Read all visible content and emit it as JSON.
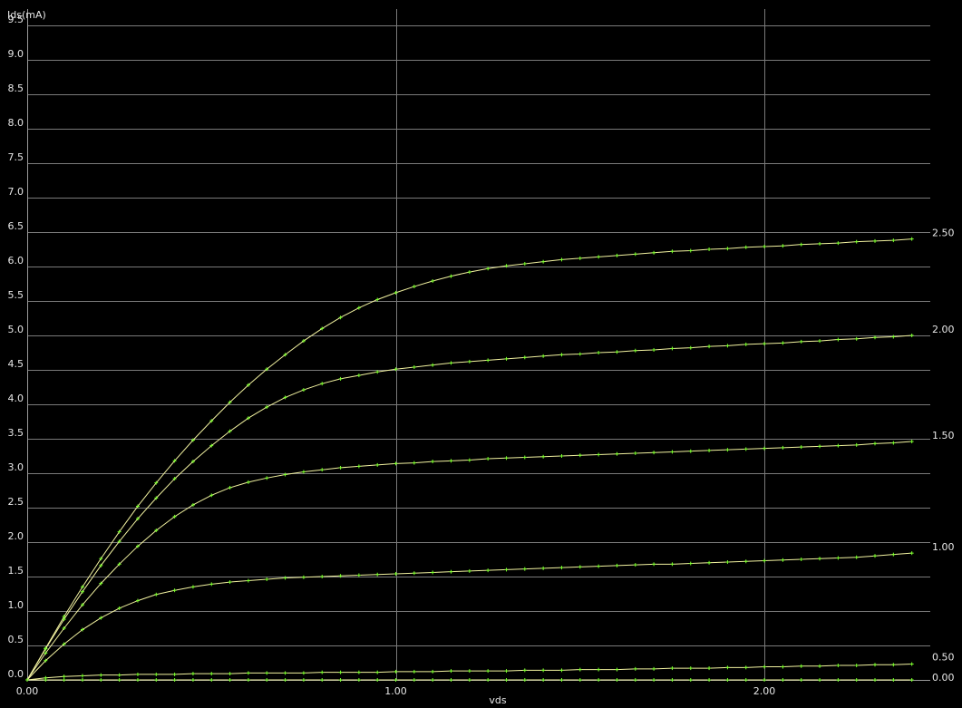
{
  "chart_data": {
    "type": "line",
    "title": "",
    "xlabel": "vds",
    "ylabel": "Ids(mA)",
    "xlim": [
      0,
      2.45
    ],
    "ylim": [
      0,
      9.5
    ],
    "x_ticks": [
      "0.00",
      "1.00",
      "2.00"
    ],
    "y_ticks": [
      "0.0",
      "0.5",
      "1.0",
      "1.5",
      "2.0",
      "2.5",
      "3.0",
      "3.5",
      "4.0",
      "4.5",
      "5.0",
      "5.5",
      "6.0",
      "6.5",
      "7.0",
      "7.5",
      "8.0",
      "8.5",
      "9.0",
      "9.5"
    ],
    "grid": true,
    "colors": {
      "background": "#000000",
      "grid": "#7a7a7a",
      "curve": "#f2f2a0",
      "marker": "#7cff2e",
      "text": "#e6e6e6"
    },
    "x": [
      0.0,
      0.05,
      0.1,
      0.15,
      0.2,
      0.25,
      0.3,
      0.35,
      0.4,
      0.45,
      0.5,
      0.55,
      0.6,
      0.65,
      0.7,
      0.75,
      0.8,
      0.85,
      0.9,
      0.95,
      1.0,
      1.05,
      1.1,
      1.15,
      1.2,
      1.25,
      1.3,
      1.35,
      1.4,
      1.45,
      1.5,
      1.55,
      1.6,
      1.65,
      1.7,
      1.75,
      1.8,
      1.85,
      1.9,
      1.95,
      2.0,
      2.05,
      2.1,
      2.15,
      2.2,
      2.25,
      2.3,
      2.35,
      2.4
    ],
    "series": [
      {
        "name": "2.50",
        "values": [
          0.0,
          0.46,
          0.92,
          1.35,
          1.76,
          2.15,
          2.52,
          2.86,
          3.18,
          3.48,
          3.76,
          4.03,
          4.28,
          4.51,
          4.72,
          4.92,
          5.1,
          5.26,
          5.4,
          5.52,
          5.62,
          5.71,
          5.79,
          5.86,
          5.92,
          5.97,
          6.01,
          6.04,
          6.07,
          6.1,
          6.12,
          6.14,
          6.16,
          6.18,
          6.2,
          6.22,
          6.23,
          6.25,
          6.26,
          6.28,
          6.29,
          6.3,
          6.32,
          6.33,
          6.34,
          6.36,
          6.37,
          6.38,
          6.4
        ]
      },
      {
        "name": "2.00",
        "values": [
          0.0,
          0.45,
          0.88,
          1.28,
          1.66,
          2.01,
          2.34,
          2.64,
          2.92,
          3.17,
          3.4,
          3.61,
          3.8,
          3.96,
          4.1,
          4.21,
          4.3,
          4.37,
          4.42,
          4.47,
          4.51,
          4.54,
          4.57,
          4.6,
          4.62,
          4.64,
          4.66,
          4.68,
          4.7,
          4.72,
          4.73,
          4.75,
          4.76,
          4.78,
          4.79,
          4.81,
          4.82,
          4.84,
          4.85,
          4.87,
          4.88,
          4.89,
          4.91,
          4.92,
          4.94,
          4.95,
          4.97,
          4.98,
          5.0
        ]
      },
      {
        "name": "1.50",
        "values": [
          0.0,
          0.39,
          0.75,
          1.09,
          1.4,
          1.68,
          1.94,
          2.17,
          2.37,
          2.54,
          2.68,
          2.79,
          2.87,
          2.93,
          2.98,
          3.02,
          3.05,
          3.08,
          3.1,
          3.12,
          3.14,
          3.15,
          3.17,
          3.18,
          3.19,
          3.21,
          3.22,
          3.23,
          3.24,
          3.25,
          3.26,
          3.27,
          3.28,
          3.29,
          3.3,
          3.31,
          3.32,
          3.33,
          3.34,
          3.35,
          3.36,
          3.37,
          3.38,
          3.39,
          3.4,
          3.41,
          3.43,
          3.44,
          3.46
        ]
      },
      {
        "name": "1.00",
        "values": [
          0.0,
          0.28,
          0.52,
          0.73,
          0.9,
          1.04,
          1.15,
          1.24,
          1.3,
          1.35,
          1.39,
          1.42,
          1.44,
          1.46,
          1.48,
          1.49,
          1.5,
          1.51,
          1.52,
          1.53,
          1.54,
          1.55,
          1.56,
          1.57,
          1.58,
          1.59,
          1.6,
          1.61,
          1.62,
          1.63,
          1.64,
          1.65,
          1.66,
          1.67,
          1.68,
          1.68,
          1.69,
          1.7,
          1.71,
          1.72,
          1.73,
          1.74,
          1.75,
          1.76,
          1.77,
          1.78,
          1.8,
          1.82,
          1.84
        ]
      },
      {
        "name": "0.50",
        "values": [
          0.0,
          0.03,
          0.05,
          0.06,
          0.07,
          0.07,
          0.08,
          0.08,
          0.08,
          0.09,
          0.09,
          0.09,
          0.1,
          0.1,
          0.1,
          0.1,
          0.11,
          0.11,
          0.11,
          0.11,
          0.12,
          0.12,
          0.12,
          0.13,
          0.13,
          0.13,
          0.13,
          0.14,
          0.14,
          0.14,
          0.15,
          0.15,
          0.15,
          0.16,
          0.16,
          0.17,
          0.17,
          0.17,
          0.18,
          0.18,
          0.19,
          0.19,
          0.2,
          0.2,
          0.21,
          0.21,
          0.22,
          0.22,
          0.23
        ]
      },
      {
        "name": "0.00",
        "values": [
          0.0,
          0.0,
          0.0,
          0.0,
          0.0,
          0.0,
          0.0,
          0.0,
          0.0,
          0.0,
          0.0,
          0.0,
          0.0,
          0.0,
          0.0,
          0.0,
          0.0,
          0.0,
          0.0,
          0.0,
          0.0,
          0.0,
          0.0,
          0.0,
          0.0,
          0.0,
          0.0,
          0.0,
          0.0,
          0.0,
          0.0,
          0.0,
          0.0,
          0.0,
          0.0,
          0.0,
          0.0,
          0.0,
          0.0,
          0.0,
          0.0,
          0.0,
          0.0,
          0.0,
          0.0,
          0.0,
          0.0,
          0.0,
          0.0
        ]
      }
    ]
  }
}
